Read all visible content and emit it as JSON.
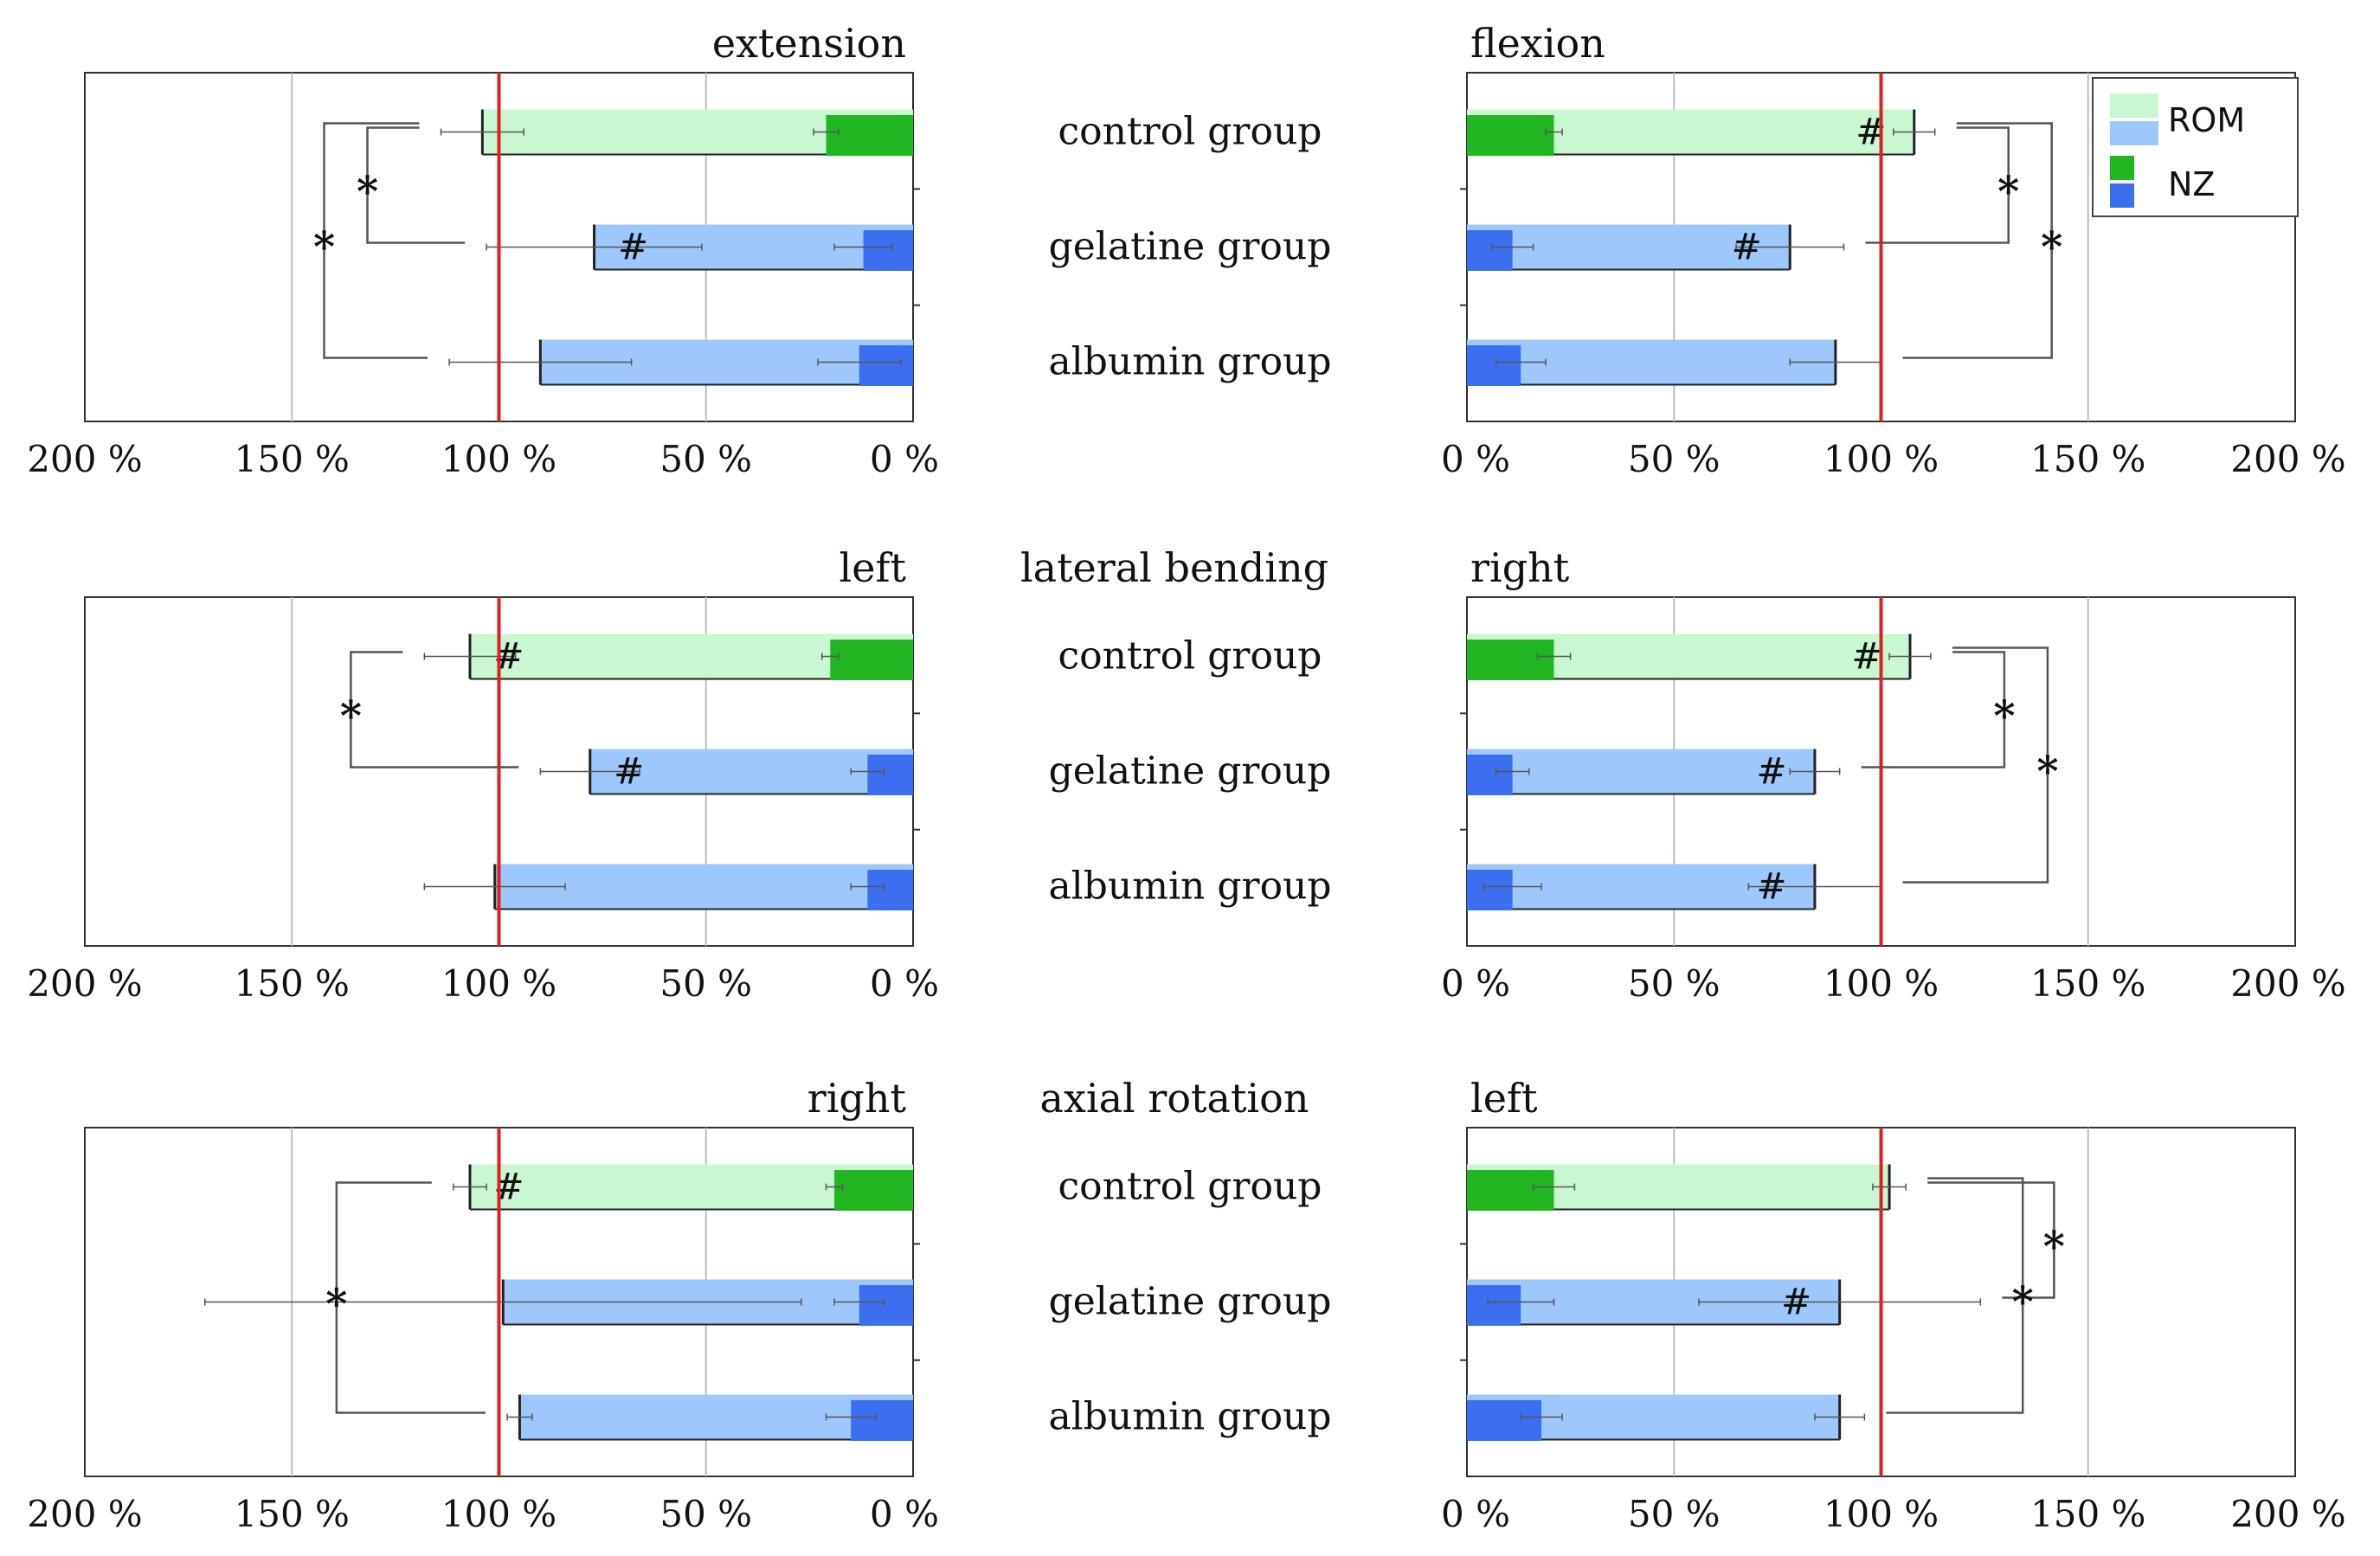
{
  "figure": {
    "categories": [
      "control group",
      "gelatine group",
      "albumin group"
    ],
    "legend": {
      "items": [
        {
          "label": "ROM",
          "colors": [
            "#c9f7d1",
            "#9ec8fb"
          ]
        },
        {
          "label": "NZ",
          "colors": [
            "#22b522",
            "#3b6ff0"
          ]
        }
      ]
    },
    "colors": {
      "control_rom": "#c9f7d1",
      "group_rom": "#9ec8fb",
      "control_nz": "#22b522",
      "group_nz": "#3b6ff0",
      "reference_line": "#e02020",
      "grid": "#bdbdbd"
    },
    "section_titles": [
      {
        "text": "lateral bending",
        "row": 1
      },
      {
        "text": "axial rotation",
        "row": 2
      }
    ],
    "significance_markers": {
      "star": "*",
      "hash": "#"
    }
  },
  "chart_data": [
    {
      "type": "bar",
      "orientation": "horizontal",
      "direction": "right-to-left",
      "title": "extension",
      "row": 0,
      "side": "left",
      "xlabel": "",
      "ylabel": "",
      "xlim": [
        0,
        200
      ],
      "reference_value": 100,
      "xticks": [
        200,
        150,
        100,
        50,
        0
      ],
      "tick_labels": [
        "200 %",
        "150 %",
        "100 %",
        "50 %",
        "0 %"
      ],
      "series": [
        {
          "name": "ROM",
          "values": [
            104,
            77,
            90
          ],
          "errors": [
            10,
            26,
            22
          ]
        },
        {
          "name": "NZ",
          "values": [
            21,
            12,
            13
          ],
          "errors": [
            3,
            7,
            10
          ]
        }
      ],
      "hash_groups": [
        1
      ],
      "significance": [
        {
          "between": [
            0,
            1
          ],
          "label": "*"
        },
        {
          "between": [
            0,
            2
          ],
          "label": "*"
        }
      ]
    },
    {
      "type": "bar",
      "orientation": "horizontal",
      "direction": "left-to-right",
      "title": "flexion",
      "row": 0,
      "side": "right",
      "xlabel": "",
      "ylabel": "",
      "xlim": [
        0,
        200
      ],
      "reference_value": 100,
      "xticks": [
        0,
        50,
        100,
        150,
        200
      ],
      "tick_labels": [
        "0 %",
        "50 %",
        "100 %",
        "150 %",
        "200 %"
      ],
      "series": [
        {
          "name": "ROM",
          "values": [
            108,
            78,
            89
          ],
          "errors": [
            5,
            13,
            11
          ]
        },
        {
          "name": "NZ",
          "values": [
            21,
            11,
            13
          ],
          "errors": [
            2,
            5,
            6
          ]
        }
      ],
      "hash_groups": [
        0,
        1
      ],
      "significance": [
        {
          "between": [
            0,
            1
          ],
          "label": "*"
        },
        {
          "between": [
            0,
            2
          ],
          "label": "*"
        }
      ]
    },
    {
      "type": "bar",
      "orientation": "horizontal",
      "direction": "right-to-left",
      "title": "left",
      "row": 1,
      "side": "left",
      "xlabel": "",
      "ylabel": "",
      "xlim": [
        0,
        200
      ],
      "reference_value": 100,
      "xticks": [
        200,
        150,
        100,
        50,
        0
      ],
      "tick_labels": [
        "200 %",
        "150 %",
        "100 %",
        "50 %",
        "0 %"
      ],
      "series": [
        {
          "name": "ROM",
          "values": [
            107,
            78,
            101
          ],
          "errors": [
            11,
            12,
            17
          ]
        },
        {
          "name": "NZ",
          "values": [
            20,
            11,
            11
          ],
          "errors": [
            2,
            4,
            4
          ]
        }
      ],
      "hash_groups": [
        0,
        1
      ],
      "significance": [
        {
          "between": [
            0,
            1
          ],
          "label": "*"
        }
      ]
    },
    {
      "type": "bar",
      "orientation": "horizontal",
      "direction": "left-to-right",
      "title": "right",
      "row": 1,
      "side": "right",
      "xlabel": "",
      "ylabel": "",
      "xlim": [
        0,
        200
      ],
      "reference_value": 100,
      "xticks": [
        0,
        50,
        100,
        150,
        200
      ],
      "tick_labels": [
        "0 %",
        "50 %",
        "100 %",
        "150 %",
        "200 %"
      ],
      "series": [
        {
          "name": "ROM",
          "values": [
            107,
            84,
            84
          ],
          "errors": [
            5,
            6,
            16
          ]
        },
        {
          "name": "NZ",
          "values": [
            21,
            11,
            11
          ],
          "errors": [
            4,
            4,
            7
          ]
        }
      ],
      "hash_groups": [
        0,
        1,
        2
      ],
      "significance": [
        {
          "between": [
            0,
            1
          ],
          "label": "*"
        },
        {
          "between": [
            0,
            2
          ],
          "label": "*"
        }
      ]
    },
    {
      "type": "bar",
      "orientation": "horizontal",
      "direction": "right-to-left",
      "title": "right",
      "row": 2,
      "side": "left",
      "xlabel": "",
      "ylabel": "",
      "xlim": [
        0,
        200
      ],
      "reference_value": 100,
      "xticks": [
        200,
        150,
        100,
        50,
        0
      ],
      "tick_labels": [
        "200 %",
        "150 %",
        "100 %",
        "50 %",
        "0 %"
      ],
      "series": [
        {
          "name": "ROM",
          "values": [
            107,
            99,
            95
          ],
          "errors": [
            4,
            72,
            3
          ]
        },
        {
          "name": "NZ",
          "values": [
            19,
            13,
            15
          ],
          "errors": [
            2,
            6,
            6
          ]
        }
      ],
      "hash_groups": [
        0
      ],
      "significance": [
        {
          "between": [
            0,
            2
          ],
          "label": "*"
        }
      ]
    },
    {
      "type": "bar",
      "orientation": "horizontal",
      "direction": "left-to-right",
      "title": "left",
      "row": 2,
      "side": "right",
      "xlabel": "",
      "ylabel": "",
      "xlim": [
        0,
        200
      ],
      "reference_value": 100,
      "xticks": [
        0,
        50,
        100,
        150,
        200
      ],
      "tick_labels": [
        "0 %",
        "50 %",
        "100 %",
        "150 %",
        "200 %"
      ],
      "series": [
        {
          "name": "ROM",
          "values": [
            102,
            90,
            90
          ],
          "errors": [
            4,
            34,
            6
          ]
        },
        {
          "name": "NZ",
          "values": [
            21,
            13,
            18
          ],
          "errors": [
            5,
            8,
            5
          ]
        }
      ],
      "hash_groups": [
        1
      ],
      "significance": [
        {
          "between": [
            0,
            1
          ],
          "label": "*"
        },
        {
          "between": [
            0,
            2
          ],
          "label": "*"
        }
      ]
    }
  ]
}
